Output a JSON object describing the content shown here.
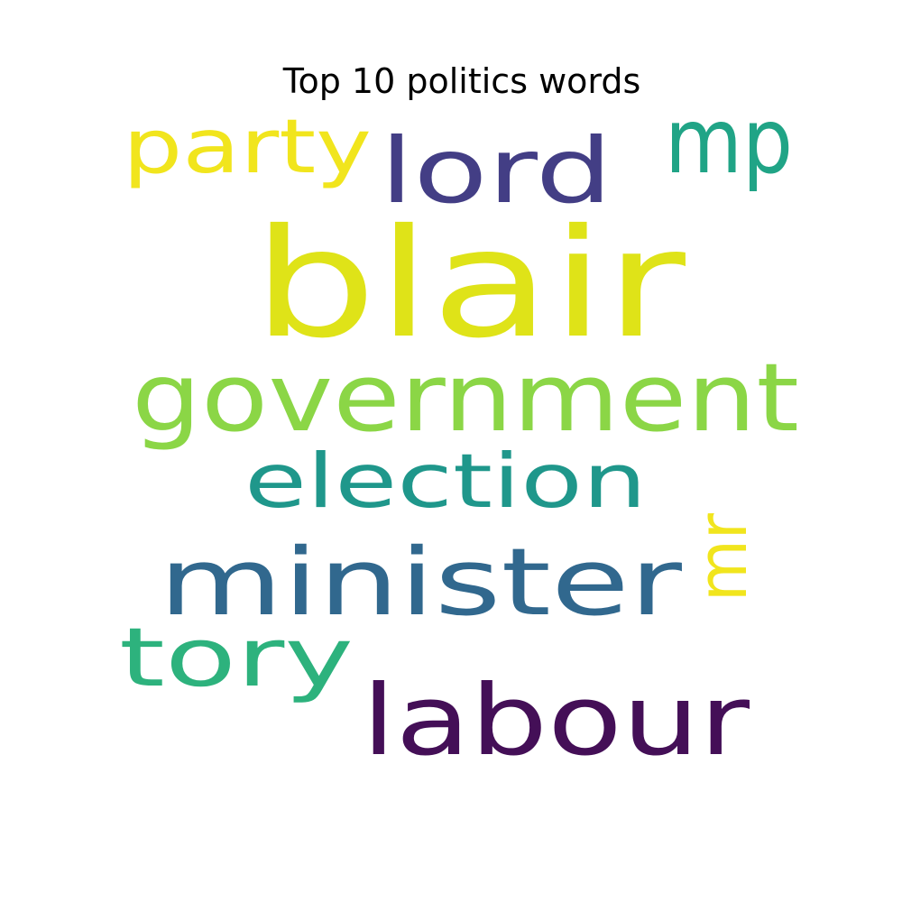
{
  "title": "Top 10 politics words",
  "chart_data": {
    "type": "wordcloud",
    "title": "Top 10 politics words",
    "words": [
      {
        "text": "blair",
        "rank": 1,
        "color": "#dfe318"
      },
      {
        "text": "government",
        "rank": 2,
        "color": "#8bd646"
      },
      {
        "text": "labour",
        "rank": 3,
        "color": "#440f57"
      },
      {
        "text": "minister",
        "rank": 4,
        "color": "#31688e"
      },
      {
        "text": "lord",
        "rank": 5,
        "color": "#433e85"
      },
      {
        "text": "mp",
        "rank": 6,
        "color": "#20a486"
      },
      {
        "text": "tory",
        "rank": 7,
        "color": "#2db27d"
      },
      {
        "text": "election",
        "rank": 8,
        "color": "#1f978b"
      },
      {
        "text": "party",
        "rank": 9,
        "color": "#f1e51d"
      },
      {
        "text": "mr",
        "rank": 10,
        "color": "#f1e51d"
      }
    ]
  }
}
